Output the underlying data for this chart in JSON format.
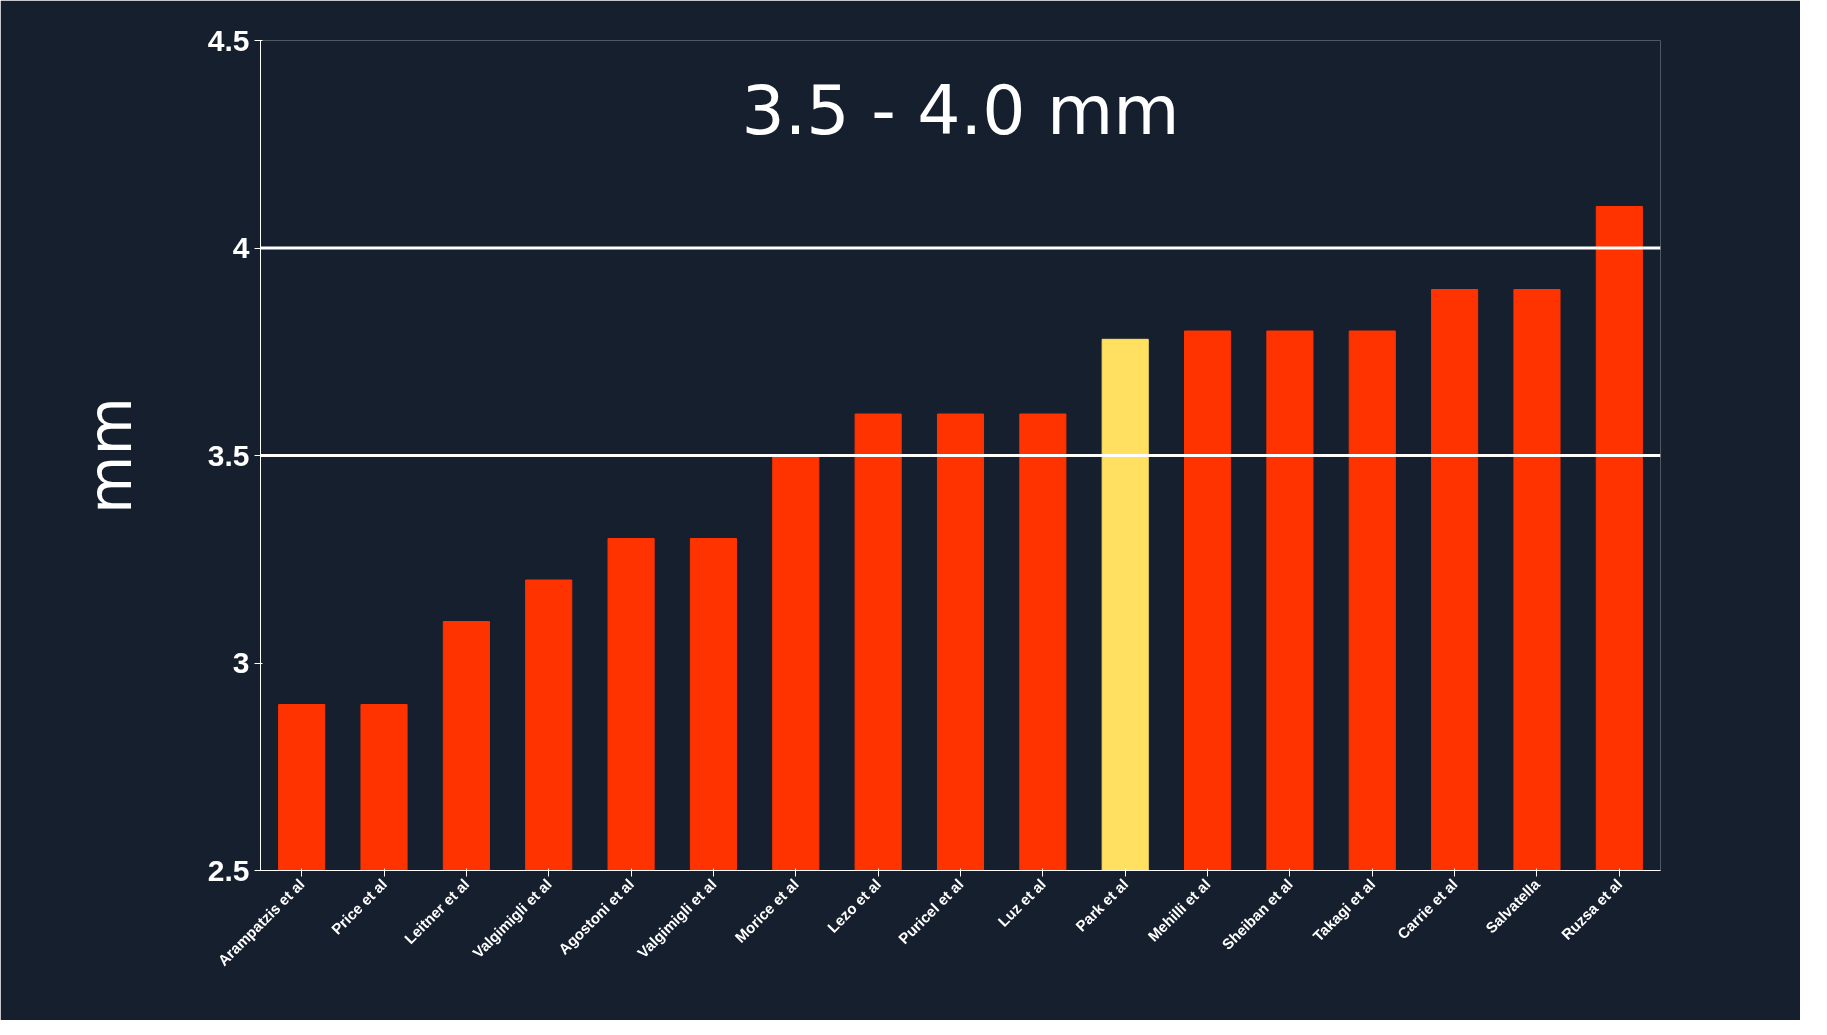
{
  "chart_data": {
    "type": "bar",
    "title": "3.5 - 4.0 mm",
    "ylabel": "mm",
    "categories": [
      "Arampatzis et al",
      "Price et al",
      "Leitner et al",
      "Valgimigli et al",
      "Agostoni et al",
      "Valgimigli et al",
      "Morice et al",
      "Lezo et al",
      "Puricel et al",
      "Luz et al",
      "Park et al",
      "Mehilli et al",
      "Sheiban et al",
      "Takagi et al",
      "Carrie et al",
      "Salvatella",
      "Ruzsa et al"
    ],
    "values": [
      2.9,
      2.9,
      3.1,
      3.2,
      3.3,
      3.3,
      3.5,
      3.6,
      3.6,
      3.6,
      3.78,
      3.8,
      3.8,
      3.8,
      3.9,
      3.9,
      4.1
    ],
    "colors": [
      "#ff3300",
      "#ff3300",
      "#ff3300",
      "#ff3300",
      "#ff3300",
      "#ff3300",
      "#ff3300",
      "#ff3300",
      "#ff3300",
      "#ff3300",
      "#ffe060",
      "#ff3300",
      "#ff3300",
      "#ff3300",
      "#ff3300",
      "#ff3300",
      "#ff3300"
    ],
    "ylim": [
      2.5,
      4.5
    ],
    "yticks": [
      2.5,
      3,
      3.5,
      4,
      4.5
    ],
    "ref_lines": [
      {
        "axis": "y",
        "value": 4,
        "color": "#ffffff"
      },
      {
        "axis": "y",
        "value": 3.5,
        "color": "#ffffff"
      }
    ],
    "grid": false
  }
}
